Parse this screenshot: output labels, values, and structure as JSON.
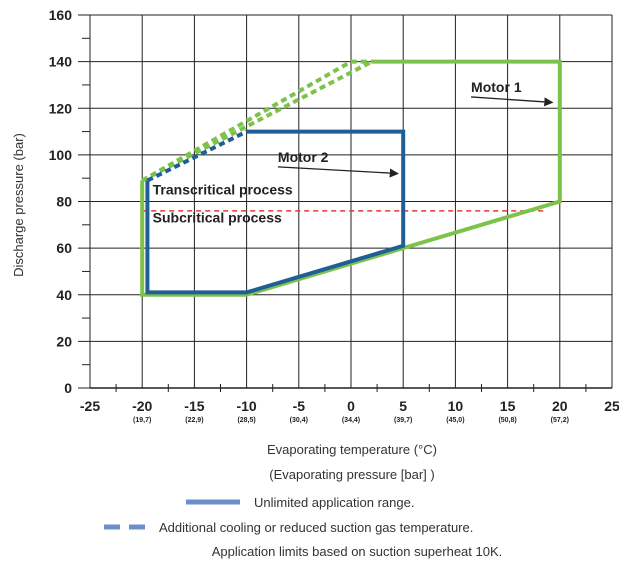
{
  "chart_data": {
    "type": "line",
    "xlabel": "Evaporating temperature (°C)",
    "xlabel2": "(Evaporating pressure [bar] )",
    "ylabel": "Discharge pressure (bar)",
    "xlim": [
      -25,
      25
    ],
    "ylim": [
      0,
      160
    ],
    "x_ticks": [
      -25,
      -20,
      -15,
      -10,
      -5,
      0,
      5,
      10,
      15,
      20,
      25
    ],
    "x_tick_labels": [
      "-25",
      "-20",
      "-15",
      "-10",
      "-5",
      "0",
      "5",
      "10",
      "15",
      "20",
      "25"
    ],
    "x_sub_ticks": [
      -20,
      -15,
      -10,
      -5,
      0,
      5,
      10,
      15,
      20
    ],
    "x_sub_labels": [
      "(19,7)",
      "(22,9)",
      "(28,5)",
      "(30,4)",
      "(34,4)",
      "(39,7)",
      "(45,0)",
      "(50,8)",
      "(57,2)"
    ],
    "y_ticks": [
      0,
      20,
      40,
      60,
      80,
      100,
      120,
      140,
      160
    ],
    "y_tick_labels": [
      "0",
      "20",
      "40",
      "60",
      "80",
      "100",
      "120",
      "140",
      "160"
    ],
    "grid": true,
    "series": [
      {
        "name": "Motor 1",
        "color": "#7dc24b",
        "style": "solid",
        "points": [
          [
            -20,
            89
          ],
          [
            -20,
            40
          ],
          [
            -10,
            40
          ],
          [
            5,
            60
          ],
          [
            20,
            80
          ],
          [
            20,
            140
          ],
          [
            2,
            140
          ]
        ]
      },
      {
        "name": "Motor 1",
        "color": "#7dc24b",
        "style": "dashed",
        "points": [
          [
            -20,
            89
          ],
          [
            0,
            140
          ],
          [
            2,
            140
          ]
        ]
      },
      {
        "name": "Motor 1",
        "color": "#7dc24b",
        "style": "dashed",
        "points": [
          [
            -20,
            89
          ],
          [
            2,
            140
          ]
        ]
      },
      {
        "name": "Motor 2",
        "color": "#1f5f95",
        "style": "solid",
        "points": [
          [
            -10,
            110
          ],
          [
            5,
            110
          ],
          [
            5,
            61
          ],
          [
            -10,
            41
          ],
          [
            -19.5,
            41
          ],
          [
            -19.5,
            89
          ]
        ]
      },
      {
        "name": "Motor 2",
        "color": "#1f5f95",
        "style": "dashed",
        "points": [
          [
            -19.5,
            89
          ],
          [
            -10,
            110
          ]
        ]
      }
    ],
    "reference_lines": [
      {
        "y": 76,
        "x_from": -20,
        "x_to": 18.5,
        "color": "#e53935",
        "style": "dashed"
      }
    ],
    "annotations": [
      {
        "text": "Transcritical process",
        "x": -19,
        "y": 83
      },
      {
        "text": "Subcritical process",
        "x": -19,
        "y": 71
      },
      {
        "text": "Motor 2",
        "x": -7,
        "y": 97,
        "arrow_to": [
          4.5,
          92
        ]
      },
      {
        "text": "Motor 1",
        "x": 11.5,
        "y": 127,
        "arrow_to": [
          19.3,
          122.5
        ]
      }
    ],
    "legend": [
      {
        "label": "Unlimited application range.",
        "style": "solid",
        "color": "#6a8fc9"
      },
      {
        "label": "Additional cooling or reduced suction gas temperature.",
        "style": "dashed",
        "color": "#6a8fc9"
      }
    ],
    "note": "Application limits based on suction superheat 10K."
  }
}
